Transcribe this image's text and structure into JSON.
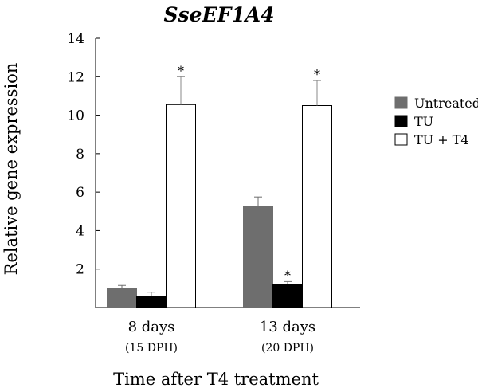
{
  "chart_data": {
    "type": "bar",
    "title": "SseEF1A4",
    "ylabel": "Relative gene expression",
    "xlabel": "Time after T4 treatment",
    "ylim": [
      0,
      14
    ],
    "yticks": [
      2,
      4,
      6,
      8,
      10,
      12,
      14
    ],
    "categories": [
      {
        "label": "8 days",
        "sublabel": "(15 DPH)"
      },
      {
        "label": "13 days",
        "sublabel": "(20 DPH)"
      }
    ],
    "series": [
      {
        "name": "Untreated",
        "color": "#6e6e6e",
        "values": [
          1.0,
          5.25
        ],
        "errors": [
          0.15,
          0.5
        ],
        "significant": [
          false,
          false
        ]
      },
      {
        "name": "TU",
        "color": "#000000",
        "values": [
          0.6,
          1.2
        ],
        "errors": [
          0.2,
          0.15
        ],
        "significant": [
          false,
          true
        ]
      },
      {
        "name": "TU + T4",
        "color": "#ffffff",
        "values": [
          10.55,
          10.5
        ],
        "errors": [
          1.45,
          1.3
        ],
        "significant": [
          true,
          true
        ]
      }
    ],
    "significance_marker": "*",
    "grid": false,
    "legend_position": "right"
  }
}
